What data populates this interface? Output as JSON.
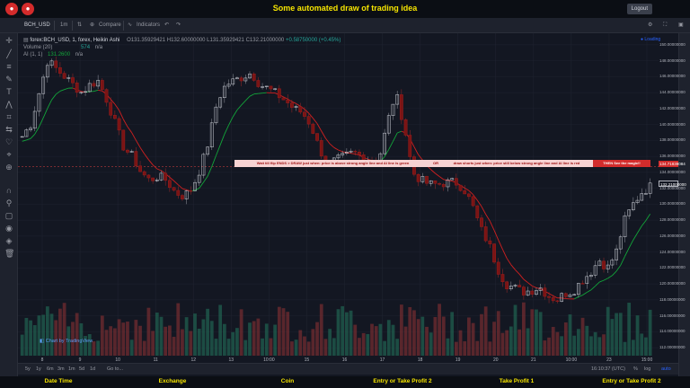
{
  "window": {
    "title": "Some automated draw of trading idea",
    "logout": "Logout"
  },
  "toolbar": {
    "symbol": "BCH_USD",
    "interval": "1m",
    "compare": "Compare",
    "indicators": "Indicators"
  },
  "legend": {
    "main": "forex:BCH_USD, 1, forex, Heikin Ashi",
    "o": "O131.35929421",
    "h": "H132.60000000",
    "l": "L131.35929421",
    "c": "C132.21000000",
    "chg": "+0.58750000 (+0.45%)",
    "volume_label": "Volume (20)",
    "volume_value": "574",
    "volume_na": "n/a",
    "ai_label": "AI (1, 1)",
    "ai_value": "131.2600",
    "ai_na": "n/a",
    "loading": "Loading"
  },
  "annotations": {
    "banner1": "Wait till flip ENDS  >  DRAW just when: price is above strong angle line and AI line is green",
    "banner2": "draw shorts just when: price still below strong angle line and AI line is red",
    "banner3": "THEN See the magic!!",
    "banner_mid": "OR"
  },
  "prices": {
    "cursor": "134.71839084",
    "last": "132.21000000"
  },
  "axis": {
    "price_ticks": [
      "150.00000000",
      "148.00000000",
      "146.00000000",
      "144.00000000",
      "142.00000000",
      "140.00000000",
      "138.00000000",
      "136.00000000",
      "134.00000000",
      "132.00000000",
      "130.00000000",
      "128.00000000",
      "126.00000000",
      "124.00000000",
      "122.00000000",
      "120.00000000",
      "118.00000000",
      "116.00000000",
      "114.00000000",
      "112.00000000"
    ],
    "time_ticks": [
      "8",
      "9",
      "10",
      "11",
      "12",
      "13",
      "10:00",
      "15",
      "16",
      "17",
      "18",
      "19",
      "20",
      "21",
      "10:00",
      "23",
      "15:00"
    ]
  },
  "footer": {
    "ranges": [
      "5y",
      "1y",
      "6m",
      "3m",
      "1m",
      "5d",
      "1d"
    ],
    "goto": "Go to...",
    "clock": "16:10:37 (UTC)",
    "pct": "%",
    "log": "log",
    "auto": "auto",
    "watermark": "Chart by TradingView"
  },
  "bottom": {
    "columns": [
      "Date Time",
      "Exchange",
      "Coin",
      "Entry or Take Profit 2",
      "Take Profit 1",
      "Entry or Take Profit 2"
    ]
  },
  "colors": {
    "up": "#26a69a",
    "down": "#ef5350",
    "title": "#f5e400",
    "ai_green": "#13a53a",
    "ai_red": "#d12020",
    "banner_bg": "#f7d3d3",
    "cursor_line": "#e04040"
  },
  "chart_data": {
    "type": "candlestick",
    "chart_style": "Heikin Ashi",
    "ylim": [
      111,
      151
    ],
    "x_ticks": [
      "8",
      "9",
      "10",
      "11",
      "12",
      "13",
      "10:00",
      "15",
      "16",
      "17",
      "18",
      "19",
      "20",
      "21",
      "10:00",
      "23",
      "15:00"
    ],
    "close_path": [
      [
        0,
        138.5
      ],
      [
        2,
        140
      ],
      [
        4,
        144
      ],
      [
        6,
        148
      ],
      [
        8,
        147
      ],
      [
        10,
        146
      ],
      [
        12,
        145
      ],
      [
        14,
        144
      ],
      [
        16,
        145
      ],
      [
        18,
        145.5
      ],
      [
        20,
        143
      ],
      [
        22,
        140
      ],
      [
        24,
        137
      ],
      [
        26,
        136
      ],
      [
        28,
        134
      ],
      [
        30,
        133
      ],
      [
        32,
        133.5
      ],
      [
        34,
        133
      ],
      [
        36,
        131.5
      ],
      [
        38,
        131
      ],
      [
        40,
        132
      ],
      [
        42,
        134.5
      ],
      [
        44,
        138
      ],
      [
        46,
        143
      ],
      [
        48,
        145
      ],
      [
        50,
        145.5
      ],
      [
        52,
        146
      ],
      [
        54,
        146.5
      ],
      [
        56,
        145
      ],
      [
        58,
        144.5
      ],
      [
        60,
        143.8
      ],
      [
        62,
        143
      ],
      [
        64,
        142
      ],
      [
        66,
        141.5
      ],
      [
        68,
        140
      ],
      [
        70,
        137
      ],
      [
        72,
        135
      ],
      [
        74,
        135.5
      ],
      [
        76,
        136
      ],
      [
        78,
        136.5
      ],
      [
        80,
        136
      ],
      [
        82,
        135.5
      ],
      [
        84,
        135.5
      ],
      [
        86,
        140
      ],
      [
        88,
        144
      ],
      [
        90,
        140
      ],
      [
        92,
        134
      ],
      [
        94,
        133
      ],
      [
        96,
        132.5
      ],
      [
        98,
        132.5
      ],
      [
        100,
        132.7
      ],
      [
        102,
        132.8
      ],
      [
        104,
        132
      ],
      [
        106,
        130
      ],
      [
        108,
        127
      ],
      [
        110,
        125
      ],
      [
        112,
        122
      ],
      [
        114,
        120
      ],
      [
        116,
        119.5
      ],
      [
        118,
        119
      ],
      [
        120,
        119.2
      ],
      [
        122,
        119.6
      ],
      [
        124,
        118.5
      ],
      [
        126,
        118
      ],
      [
        128,
        118.8
      ],
      [
        130,
        119.2
      ],
      [
        132,
        120.5
      ],
      [
        134,
        121.5
      ],
      [
        136,
        123
      ],
      [
        138,
        122
      ],
      [
        140,
        124
      ],
      [
        142,
        128
      ],
      [
        144,
        130
      ],
      [
        146,
        131.5
      ],
      [
        148,
        132.2
      ]
    ],
    "volume_note": "histogram at bottom, colored by candle direction"
  }
}
